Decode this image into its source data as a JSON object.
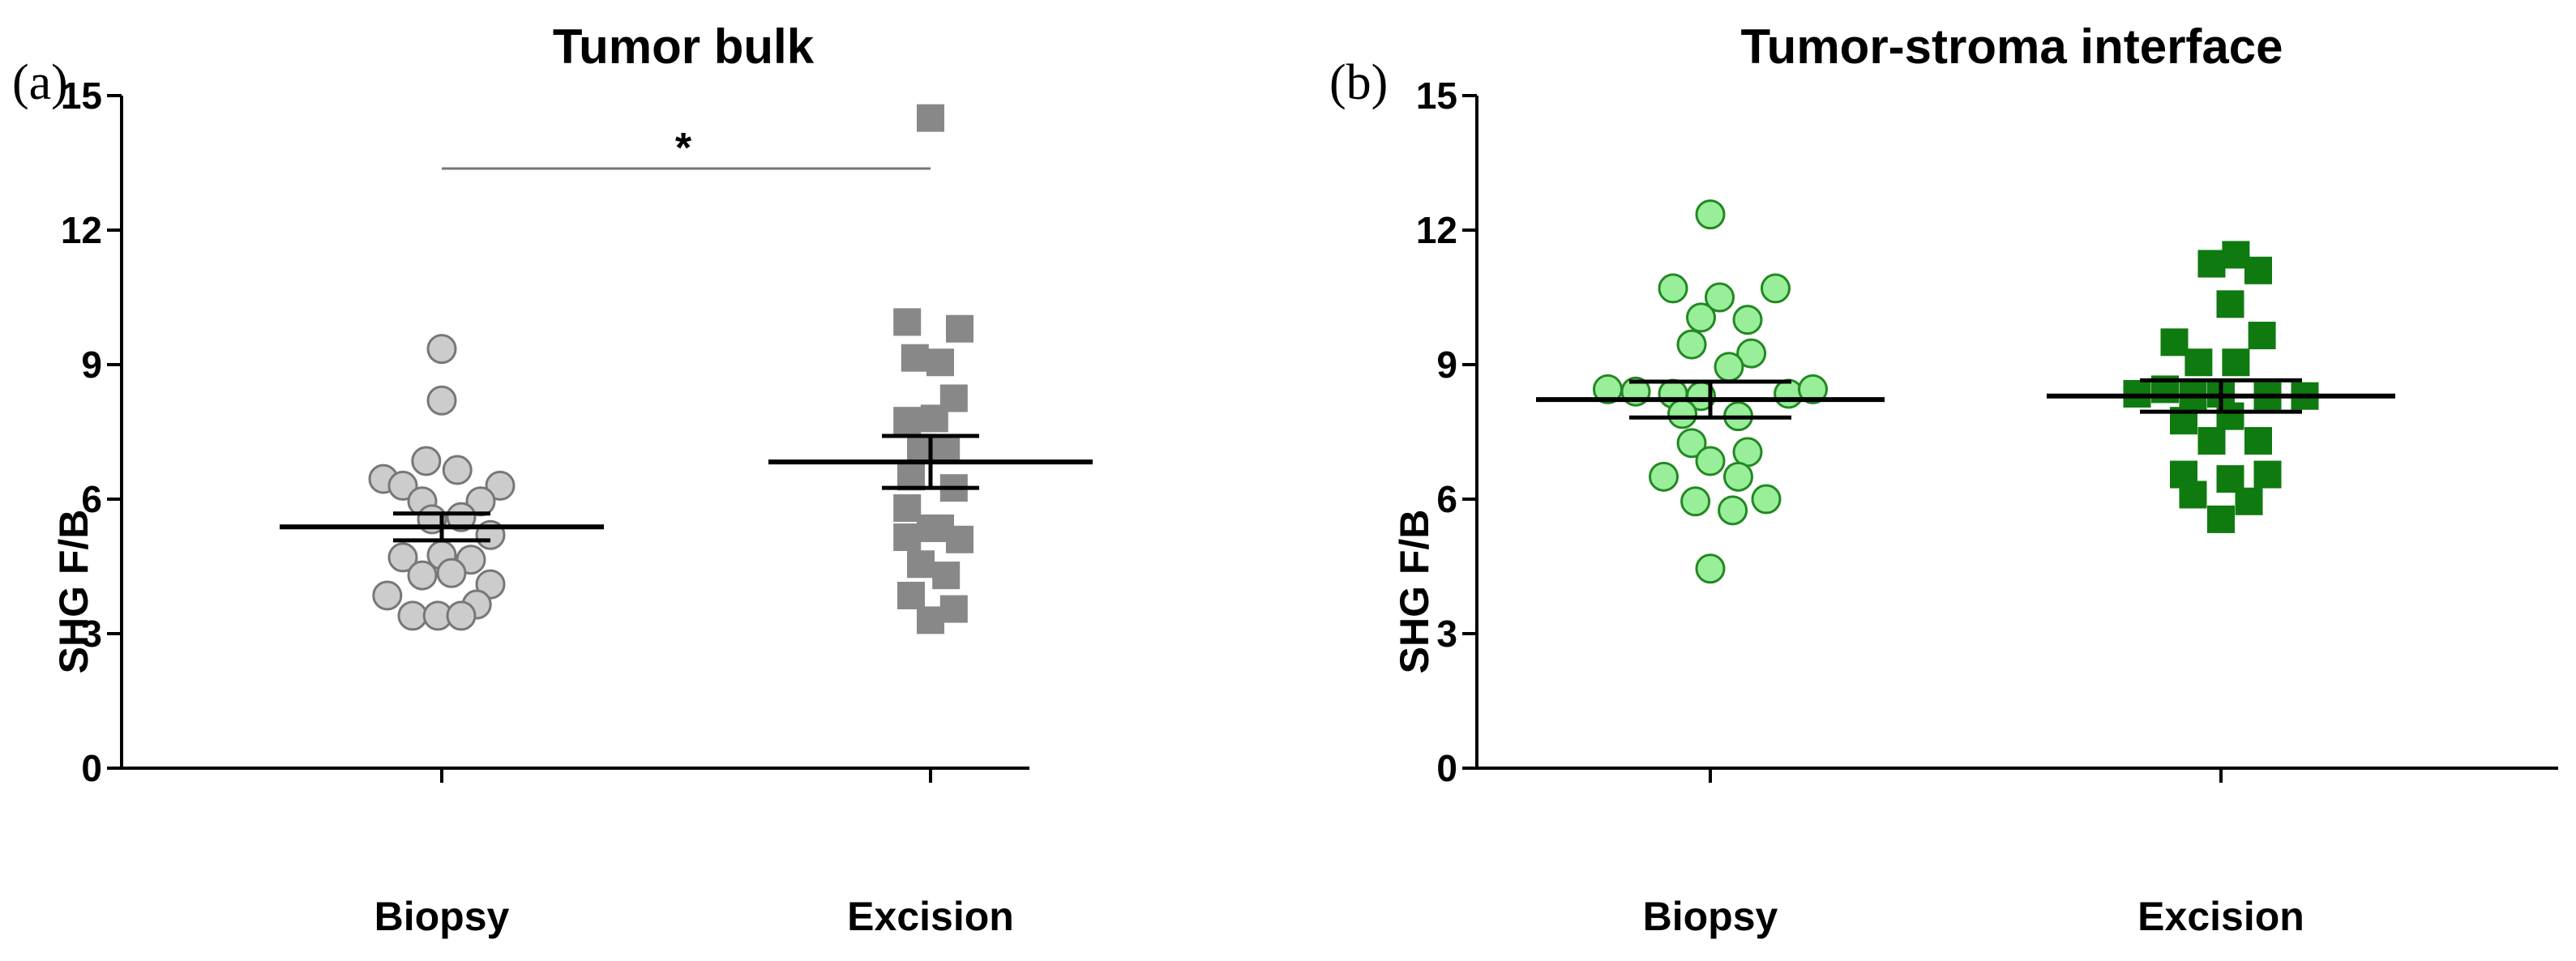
{
  "chart_data": [
    {
      "type": "scatter",
      "panel_label": "(a)",
      "title": "Tumor bulk",
      "ylabel": "SHG F/B",
      "xlabel": "",
      "ylim": [
        0,
        15
      ],
      "yticks": [
        0,
        3,
        6,
        9,
        12,
        15
      ],
      "categories": [
        "Biopsy",
        "Excision"
      ],
      "significance": {
        "label": "*",
        "between": [
          "Biopsy",
          "Excision"
        ]
      },
      "series": [
        {
          "name": "Biopsy",
          "marker": "circle",
          "color": "#cccccc",
          "stroke": "#777777",
          "points": [
            {
              "dx": 0.0,
              "y": 9.35
            },
            {
              "dx": 0.0,
              "y": 8.2
            },
            {
              "dx": -0.3,
              "y": 6.45
            },
            {
              "dx": -0.2,
              "y": 6.3
            },
            {
              "dx": -0.08,
              "y": 6.85
            },
            {
              "dx": 0.08,
              "y": 6.65
            },
            {
              "dx": 0.3,
              "y": 6.3
            },
            {
              "dx": -0.1,
              "y": 5.95
            },
            {
              "dx": 0.2,
              "y": 5.95
            },
            {
              "dx": -0.05,
              "y": 5.55
            },
            {
              "dx": 0.1,
              "y": 5.6
            },
            {
              "dx": 0.25,
              "y": 5.2
            },
            {
              "dx": -0.2,
              "y": 4.7
            },
            {
              "dx": 0.0,
              "y": 4.75
            },
            {
              "dx": 0.15,
              "y": 4.65
            },
            {
              "dx": -0.1,
              "y": 4.3
            },
            {
              "dx": 0.05,
              "y": 4.35
            },
            {
              "dx": 0.25,
              "y": 4.1
            },
            {
              "dx": -0.28,
              "y": 3.85
            },
            {
              "dx": 0.18,
              "y": 3.65
            },
            {
              "dx": -0.15,
              "y": 3.4
            },
            {
              "dx": -0.02,
              "y": 3.4
            },
            {
              "dx": 0.1,
              "y": 3.4
            }
          ],
          "mean": 5.38,
          "sem": [
            5.08,
            5.68
          ]
        },
        {
          "name": "Excision",
          "marker": "square",
          "color": "#888888",
          "stroke": "#888888",
          "points": [
            {
              "dx": 0.0,
              "y": 14.5
            },
            {
              "dx": -0.12,
              "y": 9.95
            },
            {
              "dx": 0.15,
              "y": 9.8
            },
            {
              "dx": -0.08,
              "y": 9.15
            },
            {
              "dx": 0.05,
              "y": 9.05
            },
            {
              "dx": 0.12,
              "y": 8.25
            },
            {
              "dx": -0.12,
              "y": 7.75
            },
            {
              "dx": 0.02,
              "y": 7.8
            },
            {
              "dx": -0.05,
              "y": 7.15
            },
            {
              "dx": 0.08,
              "y": 7.1
            },
            {
              "dx": -0.1,
              "y": 6.5
            },
            {
              "dx": 0.12,
              "y": 6.25
            },
            {
              "dx": -0.12,
              "y": 5.8
            },
            {
              "dx": 0.0,
              "y": 5.35
            },
            {
              "dx": -0.12,
              "y": 5.15
            },
            {
              "dx": 0.05,
              "y": 5.35
            },
            {
              "dx": 0.15,
              "y": 5.1
            },
            {
              "dx": -0.05,
              "y": 4.55
            },
            {
              "dx": 0.08,
              "y": 4.3
            },
            {
              "dx": -0.1,
              "y": 3.85
            },
            {
              "dx": 0.12,
              "y": 3.55
            },
            {
              "dx": 0.0,
              "y": 3.3
            }
          ],
          "mean": 6.83,
          "sem": [
            6.25,
            7.41
          ]
        }
      ]
    },
    {
      "type": "scatter",
      "panel_label": "(b)",
      "title": "Tumor-stroma interface",
      "ylabel": "SHG F/B",
      "xlabel": "",
      "ylim": [
        0,
        15
      ],
      "yticks": [
        0,
        3,
        6,
        9,
        12,
        15
      ],
      "categories": [
        "Biopsy",
        "Excision"
      ],
      "series": [
        {
          "name": "Biopsy",
          "marker": "circle",
          "color": "#99ee99",
          "stroke": "#228822",
          "points": [
            {
              "dx": 0.0,
              "y": 12.35
            },
            {
              "dx": -0.2,
              "y": 10.7
            },
            {
              "dx": 0.05,
              "y": 10.5
            },
            {
              "dx": 0.35,
              "y": 10.7
            },
            {
              "dx": -0.05,
              "y": 10.05
            },
            {
              "dx": 0.2,
              "y": 10.0
            },
            {
              "dx": -0.1,
              "y": 9.45
            },
            {
              "dx": 0.22,
              "y": 9.25
            },
            {
              "dx": 0.1,
              "y": 8.95
            },
            {
              "dx": -0.55,
              "y": 8.45
            },
            {
              "dx": -0.4,
              "y": 8.4
            },
            {
              "dx": -0.2,
              "y": 8.35
            },
            {
              "dx": -0.05,
              "y": 8.3
            },
            {
              "dx": 0.42,
              "y": 8.35
            },
            {
              "dx": 0.55,
              "y": 8.45
            },
            {
              "dx": -0.15,
              "y": 7.9
            },
            {
              "dx": 0.15,
              "y": 7.85
            },
            {
              "dx": -0.1,
              "y": 7.25
            },
            {
              "dx": 0.2,
              "y": 7.05
            },
            {
              "dx": -0.25,
              "y": 6.5
            },
            {
              "dx": 0.0,
              "y": 6.85
            },
            {
              "dx": 0.15,
              "y": 6.5
            },
            {
              "dx": -0.08,
              "y": 5.95
            },
            {
              "dx": 0.12,
              "y": 5.75
            },
            {
              "dx": 0.3,
              "y": 6.0
            },
            {
              "dx": 0.0,
              "y": 4.45
            }
          ],
          "mean": 8.22,
          "sem": [
            7.82,
            8.62
          ]
        },
        {
          "name": "Excision",
          "marker": "square",
          "color": "#0f7a0f",
          "stroke": "#0f7a0f",
          "points": [
            {
              "dx": 0.08,
              "y": 11.45
            },
            {
              "dx": -0.05,
              "y": 11.25
            },
            {
              "dx": 0.2,
              "y": 11.1
            },
            {
              "dx": 0.05,
              "y": 10.35
            },
            {
              "dx": -0.25,
              "y": 9.5
            },
            {
              "dx": 0.22,
              "y": 9.65
            },
            {
              "dx": -0.12,
              "y": 9.05
            },
            {
              "dx": 0.08,
              "y": 9.05
            },
            {
              "dx": -0.45,
              "y": 8.35
            },
            {
              "dx": -0.3,
              "y": 8.45
            },
            {
              "dx": -0.15,
              "y": 8.3
            },
            {
              "dx": 0.0,
              "y": 8.35
            },
            {
              "dx": 0.25,
              "y": 8.3
            },
            {
              "dx": 0.45,
              "y": 8.3
            },
            {
              "dx": -0.2,
              "y": 7.75
            },
            {
              "dx": 0.05,
              "y": 7.85
            },
            {
              "dx": -0.05,
              "y": 7.3
            },
            {
              "dx": 0.2,
              "y": 7.3
            },
            {
              "dx": -0.2,
              "y": 6.55
            },
            {
              "dx": 0.05,
              "y": 6.45
            },
            {
              "dx": 0.25,
              "y": 6.55
            },
            {
              "dx": -0.15,
              "y": 6.1
            },
            {
              "dx": 0.15,
              "y": 5.95
            },
            {
              "dx": 0.0,
              "y": 5.55
            }
          ],
          "mean": 8.3,
          "sem": [
            7.95,
            8.65
          ]
        }
      ]
    }
  ]
}
